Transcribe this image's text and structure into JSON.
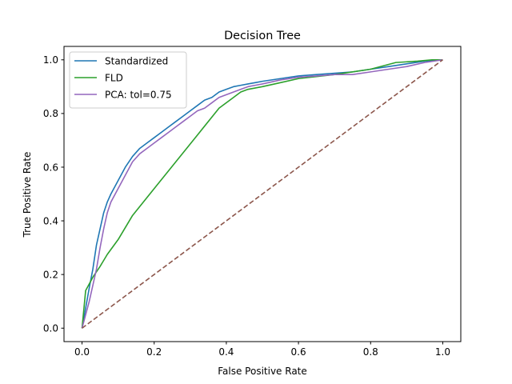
{
  "chart_data": {
    "type": "line",
    "title": "Decision Tree",
    "xlabel": "False Positive Rate",
    "ylabel": "True Positive Rate",
    "xlim": [
      -0.05,
      1.05
    ],
    "ylim": [
      -0.05,
      1.05
    ],
    "xticks": [
      0.0,
      0.2,
      0.4,
      0.6,
      0.8,
      1.0
    ],
    "xtick_labels": [
      "0.0",
      "0.2",
      "0.4",
      "0.6",
      "0.8",
      "1.0"
    ],
    "yticks": [
      0.0,
      0.2,
      0.4,
      0.6,
      0.8,
      1.0
    ],
    "ytick_labels": [
      "0.0",
      "0.2",
      "0.4",
      "0.6",
      "0.8",
      "1.0"
    ],
    "grid": false,
    "legend_position": "upper left",
    "series": [
      {
        "name": "Standardized",
        "color": "#1f77b4",
        "x": [
          0,
          0.02,
          0.03,
          0.04,
          0.05,
          0.06,
          0.07,
          0.08,
          0.1,
          0.12,
          0.14,
          0.16,
          0.18,
          0.2,
          0.22,
          0.24,
          0.26,
          0.28,
          0.3,
          0.32,
          0.34,
          0.36,
          0.38,
          0.4,
          0.42,
          0.44,
          0.46,
          0.48,
          0.5,
          0.55,
          0.6,
          0.65,
          0.7,
          0.75,
          0.8,
          0.85,
          0.9,
          0.95,
          1.0
        ],
        "y": [
          0,
          0.15,
          0.22,
          0.31,
          0.37,
          0.43,
          0.47,
          0.5,
          0.55,
          0.6,
          0.64,
          0.67,
          0.69,
          0.71,
          0.73,
          0.75,
          0.77,
          0.79,
          0.81,
          0.83,
          0.85,
          0.86,
          0.88,
          0.89,
          0.9,
          0.905,
          0.91,
          0.915,
          0.92,
          0.93,
          0.94,
          0.945,
          0.95,
          0.955,
          0.965,
          0.975,
          0.985,
          0.995,
          1.0
        ]
      },
      {
        "name": "FLD",
        "color": "#2ca02c",
        "x": [
          0,
          0.01,
          0.03,
          0.05,
          0.07,
          0.1,
          0.14,
          0.2,
          0.26,
          0.32,
          0.38,
          0.42,
          0.44,
          0.46,
          0.5,
          0.55,
          0.6,
          0.7,
          0.8,
          0.87,
          0.93,
          0.97,
          1.0
        ],
        "y": [
          0,
          0.14,
          0.19,
          0.23,
          0.275,
          0.33,
          0.42,
          0.52,
          0.62,
          0.72,
          0.82,
          0.86,
          0.88,
          0.89,
          0.9,
          0.915,
          0.93,
          0.945,
          0.965,
          0.99,
          0.995,
          1.0,
          1.0
        ]
      },
      {
        "name": "PCA: tol=0.75",
        "color": "#9467bd",
        "x": [
          0,
          0.02,
          0.04,
          0.05,
          0.06,
          0.07,
          0.08,
          0.1,
          0.12,
          0.14,
          0.16,
          0.18,
          0.2,
          0.22,
          0.24,
          0.26,
          0.28,
          0.3,
          0.32,
          0.34,
          0.36,
          0.38,
          0.4,
          0.42,
          0.44,
          0.46,
          0.48,
          0.5,
          0.55,
          0.6,
          0.65,
          0.7,
          0.75,
          0.8,
          0.85,
          0.9,
          0.95,
          1.0
        ],
        "y": [
          0,
          0.1,
          0.22,
          0.3,
          0.37,
          0.43,
          0.47,
          0.52,
          0.57,
          0.62,
          0.65,
          0.67,
          0.69,
          0.71,
          0.73,
          0.75,
          0.77,
          0.79,
          0.81,
          0.82,
          0.84,
          0.86,
          0.87,
          0.88,
          0.89,
          0.9,
          0.905,
          0.91,
          0.925,
          0.935,
          0.94,
          0.945,
          0.945,
          0.955,
          0.965,
          0.975,
          0.99,
          1.0
        ]
      },
      {
        "color": "#8c564b",
        "dashed": true,
        "x": [
          0,
          1
        ],
        "y": [
          0,
          1
        ]
      }
    ]
  }
}
